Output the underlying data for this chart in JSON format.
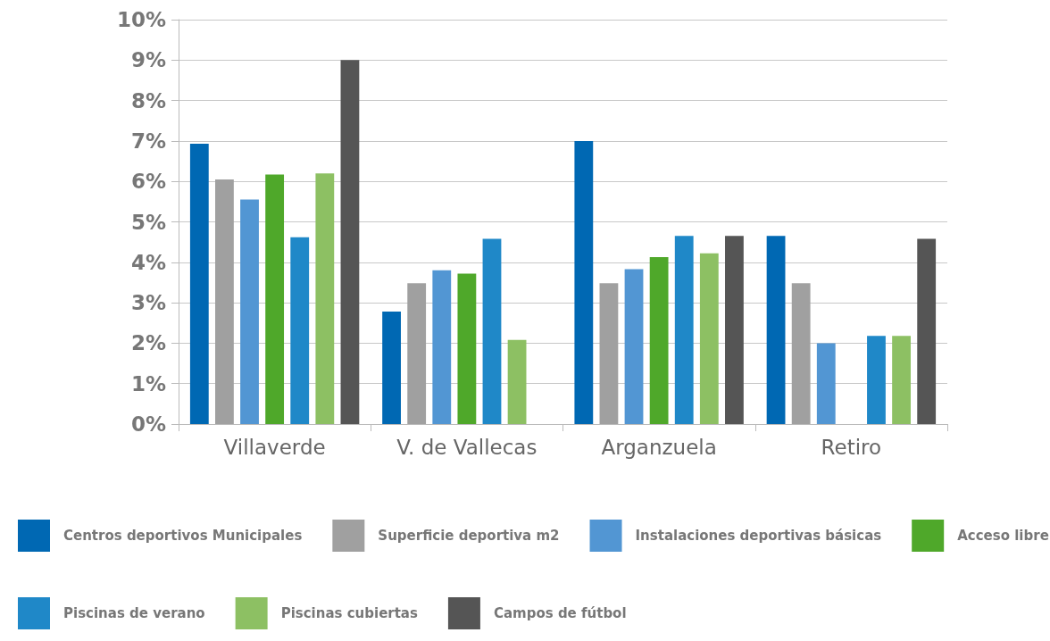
{
  "chart_data": {
    "type": "bar",
    "categories": [
      "Villaverde",
      "V. de Vallecas",
      "Arganzuela",
      "Retiro"
    ],
    "series": [
      {
        "name": "Centros deportivos Municipales",
        "color": "#0068b3",
        "values": [
          6.93,
          2.78,
          7.0,
          4.65
        ]
      },
      {
        "name": "Superficie deportiva m2",
        "color": "#a0a0a0",
        "values": [
          6.05,
          3.48,
          3.48,
          3.48
        ]
      },
      {
        "name": "Instalaciones deportivas básicas",
        "color": "#5296d3",
        "values": [
          5.55,
          3.8,
          3.83,
          2.0
        ]
      },
      {
        "name": "Acceso libre",
        "color": "#4fa82a",
        "values": [
          6.17,
          3.72,
          4.13,
          null
        ]
      },
      {
        "name": "Piscinas de verano",
        "color": "#1f88c8",
        "values": [
          4.62,
          4.58,
          4.65,
          2.18
        ]
      },
      {
        "name": "Piscinas cubiertas",
        "color": "#8dc063",
        "values": [
          6.2,
          2.08,
          4.22,
          2.18
        ]
      },
      {
        "name": "Campos de fútbol",
        "color": "#555555",
        "values": [
          9.0,
          null,
          4.65,
          4.58
        ]
      }
    ],
    "ylim": [
      0,
      10
    ],
    "yticks": [
      {
        "value": 0,
        "label": "0%"
      },
      {
        "value": 1,
        "label": "1%"
      },
      {
        "value": 2,
        "label": "2%"
      },
      {
        "value": 3,
        "label": "3%"
      },
      {
        "value": 4,
        "label": "4%"
      },
      {
        "value": 5,
        "label": "5%"
      },
      {
        "value": 6,
        "label": "6%"
      },
      {
        "value": 7,
        "label": "7%"
      },
      {
        "value": 8,
        "label": "8%"
      },
      {
        "value": 9,
        "label": "9%"
      },
      {
        "value": 10,
        "label": "10%"
      }
    ],
    "grid": "y",
    "legend": "bottom"
  }
}
